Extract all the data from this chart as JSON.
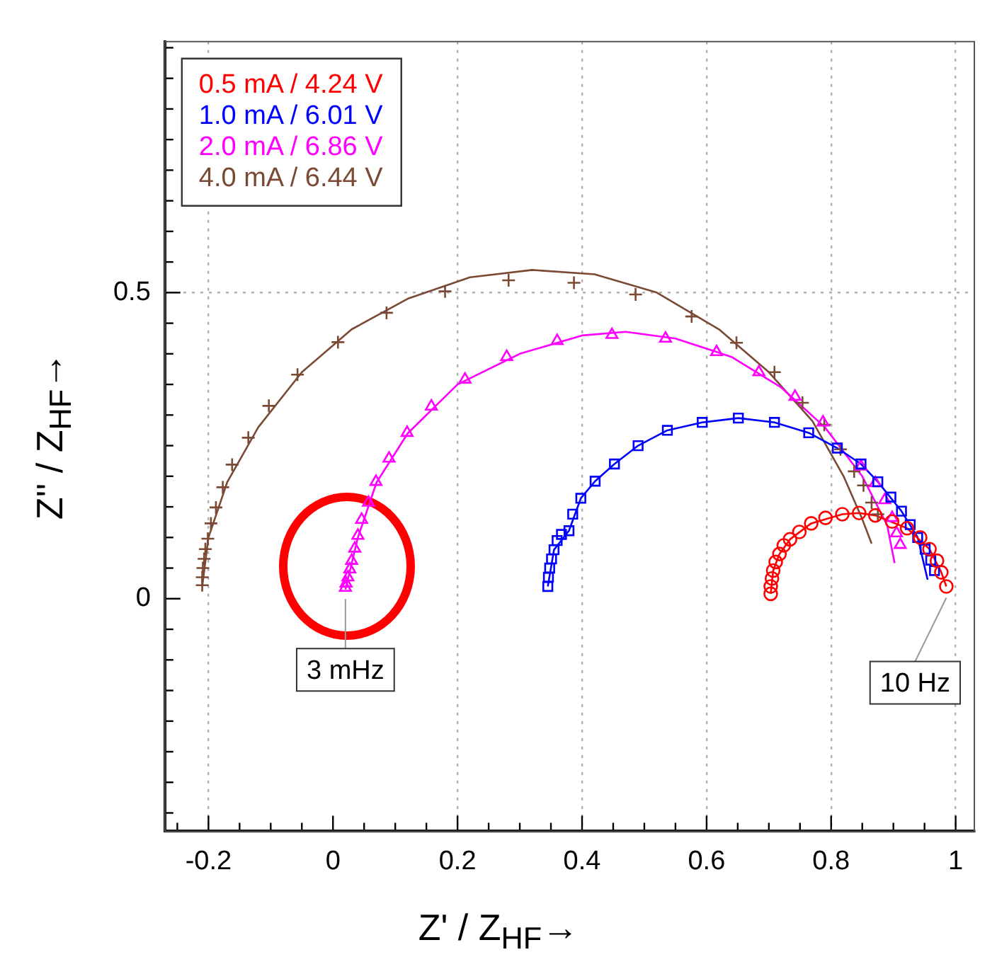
{
  "chart_data": {
    "type": "scatter",
    "xlabel": "Z' / Z$_{HF}$→",
    "ylabel": "Z'' / Z$_{HF}$→",
    "xlim": [
      -0.27,
      1.03
    ],
    "ylim": [
      -0.38,
      0.91
    ],
    "xticks": [
      {
        "value": -0.25,
        "label": null
      },
      -0.2,
      {
        "value": -0.15,
        "label": null
      },
      {
        "value": -0.1,
        "label": null
      },
      {
        "value": -0.05,
        "label": null
      },
      0,
      {
        "value": 0.05,
        "label": null
      },
      {
        "value": 0.1,
        "label": null
      },
      {
        "value": 0.15,
        "label": null
      },
      0.2,
      {
        "value": 0.25,
        "label": null
      },
      {
        "value": 0.3,
        "label": null
      },
      {
        "value": 0.35,
        "label": null
      },
      0.4,
      {
        "value": 0.45,
        "label": null
      },
      {
        "value": 0.5,
        "label": null
      },
      {
        "value": 0.55,
        "label": null
      },
      0.6,
      {
        "value": 0.65,
        "label": null
      },
      {
        "value": 0.7,
        "label": null
      },
      {
        "value": 0.75,
        "label": null
      },
      0.8,
      {
        "value": 0.85,
        "label": null
      },
      {
        "value": 0.9,
        "label": null
      },
      {
        "value": 0.95,
        "label": null
      },
      1
    ],
    "yticks": [
      {
        "value": -0.35,
        "label": null
      },
      {
        "value": -0.3,
        "label": null
      },
      {
        "value": -0.25,
        "label": null
      },
      {
        "value": -0.2,
        "label": null
      },
      {
        "value": -0.15,
        "label": null
      },
      {
        "value": -0.1,
        "label": null
      },
      {
        "value": -0.05,
        "label": null
      },
      0,
      {
        "value": 0.05,
        "label": null
      },
      {
        "value": 0.1,
        "label": null
      },
      {
        "value": 0.15,
        "label": null
      },
      {
        "value": 0.2,
        "label": null
      },
      {
        "value": 0.25,
        "label": null
      },
      {
        "value": 0.3,
        "label": null
      },
      {
        "value": 0.35,
        "label": null
      },
      {
        "value": 0.4,
        "label": null
      },
      {
        "value": 0.45,
        "label": null
      },
      0.5,
      {
        "value": 0.55,
        "label": null
      },
      {
        "value": 0.6,
        "label": null
      },
      {
        "value": 0.65,
        "label": null
      },
      {
        "value": 0.7,
        "label": null
      },
      {
        "value": 0.75,
        "label": null
      },
      {
        "value": 0.8,
        "label": null
      },
      {
        "value": 0.85,
        "label": null
      },
      {
        "value": 0.9,
        "label": null
      }
    ],
    "grid": true,
    "legend": "top left",
    "annotations": [
      {
        "text": "3 mHz",
        "x": 0.02,
        "y": 0.018
      },
      {
        "text": "10 Hz",
        "x": 0.985,
        "y": 0.02
      }
    ],
    "series": [
      {
        "name": "0.5 mA / 4.24 V",
        "type": "scatter",
        "marker": "circle",
        "color": "#ff0000",
        "x": [
          0.703,
          0.703,
          0.705,
          0.707,
          0.711,
          0.717,
          0.724,
          0.734,
          0.749,
          0.768,
          0.791,
          0.818,
          0.845,
          0.871,
          0.898,
          0.922,
          0.943,
          0.958,
          0.97,
          0.977,
          0.985
        ],
        "values": [
          0.008,
          0.02,
          0.033,
          0.046,
          0.06,
          0.073,
          0.087,
          0.097,
          0.109,
          0.123,
          0.132,
          0.138,
          0.14,
          0.136,
          0.126,
          0.115,
          0.1,
          0.081,
          0.062,
          0.043,
          0.02
        ]
      },
      {
        "name": "1.0 mA / 6.01 V",
        "type": "scatter",
        "marker": "square",
        "color": "#0000ff",
        "x": [
          0.345,
          0.346,
          0.348,
          0.351,
          0.355,
          0.36,
          0.367,
          0.379,
          0.385,
          0.398,
          0.421,
          0.452,
          0.49,
          0.537,
          0.593,
          0.651,
          0.709,
          0.764,
          0.81,
          0.848,
          0.875,
          0.896,
          0.913,
          0.927,
          0.939,
          0.951,
          0.96,
          0.966
        ],
        "values": [
          0.02,
          0.035,
          0.05,
          0.065,
          0.08,
          0.095,
          0.105,
          0.111,
          0.138,
          0.164,
          0.192,
          0.22,
          0.25,
          0.275,
          0.288,
          0.295,
          0.288,
          0.271,
          0.246,
          0.22,
          0.191,
          0.166,
          0.143,
          0.121,
          0.1,
          0.081,
          0.063,
          0.046
        ]
      },
      {
        "name": "2.0 mA / 6.86 V",
        "type": "scatter",
        "marker": "triangle",
        "color": "#ff00ff",
        "x": [
          0.02,
          0.021,
          0.024,
          0.027,
          0.03,
          0.035,
          0.04,
          0.046,
          0.057,
          0.069,
          0.09,
          0.119,
          0.158,
          0.212,
          0.279,
          0.36,
          0.448,
          0.534,
          0.616,
          0.684,
          0.742,
          0.787,
          0.848,
          0.871,
          0.886,
          0.898,
          0.905,
          0.911
        ],
        "values": [
          0.018,
          0.025,
          0.035,
          0.048,
          0.062,
          0.082,
          0.103,
          0.129,
          0.157,
          0.191,
          0.229,
          0.271,
          0.314,
          0.358,
          0.395,
          0.421,
          0.431,
          0.425,
          0.403,
          0.37,
          0.33,
          0.288,
          0.216,
          0.189,
          0.161,
          0.132,
          0.107,
          0.088
        ]
      },
      {
        "name": "4.0 mA / 6.44 V",
        "type": "scatter",
        "marker": "cross",
        "color": "#7b4a35",
        "x": [
          -0.21,
          -0.21,
          -0.209,
          -0.207,
          -0.205,
          -0.201,
          -0.196,
          -0.188,
          -0.177,
          -0.162,
          -0.136,
          -0.103,
          -0.057,
          0.008,
          0.086,
          0.18,
          0.282,
          0.387,
          0.486,
          0.576,
          0.648,
          0.709,
          0.754,
          0.789,
          0.815,
          0.837,
          0.852,
          0.865,
          0.875
        ],
        "values": [
          0.022,
          0.035,
          0.05,
          0.065,
          0.081,
          0.098,
          0.123,
          0.149,
          0.182,
          0.219,
          0.263,
          0.315,
          0.366,
          0.419,
          0.467,
          0.502,
          0.52,
          0.516,
          0.497,
          0.461,
          0.418,
          0.37,
          0.32,
          0.284,
          0.244,
          0.208,
          0.185,
          0.157,
          0.138
        ]
      },
      {
        "type": "line",
        "marker": "none",
        "color": "#ff0000",
        "x": [
          0.703,
          0.707,
          0.717,
          0.734,
          0.768,
          0.818,
          0.845,
          0.871,
          0.922,
          0.958,
          0.977,
          0.985
        ],
        "values": [
          0.008,
          0.046,
          0.073,
          0.097,
          0.123,
          0.138,
          0.14,
          0.136,
          0.115,
          0.081,
          0.043,
          0.02
        ]
      },
      {
        "type": "line",
        "marker": "none",
        "color": "#0000ff",
        "x": [
          0.345,
          0.355,
          0.379,
          0.398,
          0.421,
          0.452,
          0.49,
          0.537,
          0.593,
          0.651,
          0.709,
          0.764,
          0.81,
          0.848,
          0.875,
          0.913,
          0.939,
          0.955
        ],
        "values": [
          0.02,
          0.08,
          0.111,
          0.164,
          0.192,
          0.22,
          0.25,
          0.275,
          0.288,
          0.295,
          0.288,
          0.271,
          0.246,
          0.22,
          0.191,
          0.143,
          0.1,
          0.031
        ]
      },
      {
        "type": "line",
        "marker": "none",
        "color": "#ff00ff",
        "x": [
          0.02,
          0.04,
          0.07,
          0.12,
          0.2,
          0.3,
          0.4,
          0.47,
          0.55,
          0.64,
          0.72,
          0.79,
          0.85,
          0.89,
          0.902
        ],
        "values": [
          0.015,
          0.1,
          0.19,
          0.27,
          0.35,
          0.4,
          0.43,
          0.436,
          0.425,
          0.395,
          0.345,
          0.28,
          0.2,
          0.12,
          0.058
        ]
      },
      {
        "type": "line",
        "marker": "none",
        "color": "#7b4a35",
        "x": [
          -0.21,
          -0.2,
          -0.17,
          -0.12,
          -0.05,
          0.03,
          0.12,
          0.22,
          0.32,
          0.42,
          0.52,
          0.62,
          0.7,
          0.77,
          0.82,
          0.85,
          0.865
        ],
        "values": [
          0.02,
          0.1,
          0.19,
          0.28,
          0.37,
          0.44,
          0.49,
          0.525,
          0.537,
          0.53,
          0.5,
          0.44,
          0.37,
          0.29,
          0.2,
          0.13,
          0.09
        ]
      }
    ]
  }
}
